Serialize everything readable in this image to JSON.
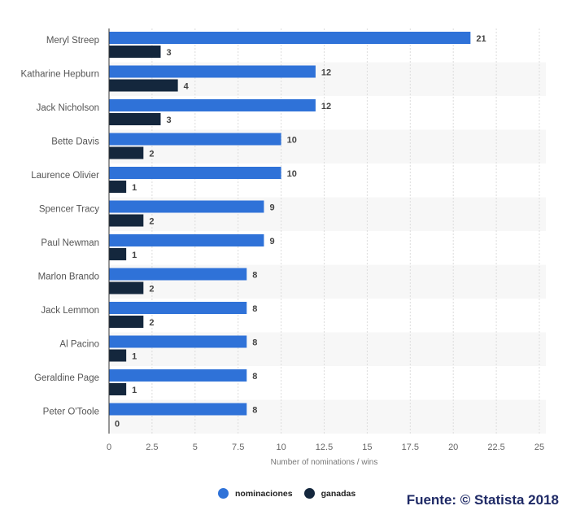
{
  "chart_data": {
    "type": "bar",
    "orientation": "horizontal",
    "categories": [
      "Meryl Streep",
      "Katharine Hepburn",
      "Jack Nicholson",
      "Bette Davis",
      "Laurence Olivier",
      "Spencer Tracy",
      "Paul Newman",
      "Marlon Brando",
      "Jack Lemmon",
      "Al Pacino",
      "Geraldine Page",
      "Peter O'Toole"
    ],
    "series": [
      {
        "name": "nominaciones",
        "color": "#2f72d8",
        "values": [
          21,
          12,
          12,
          10,
          10,
          9,
          9,
          8,
          8,
          8,
          8,
          8
        ]
      },
      {
        "name": "ganadas",
        "color": "#14273d",
        "values": [
          3,
          4,
          3,
          2,
          1,
          2,
          1,
          2,
          2,
          1,
          1,
          0
        ]
      }
    ],
    "title": "",
    "xlabel": "Number of nominations / wins",
    "ylabel": "",
    "xlim": [
      0,
      25
    ],
    "xticks": [
      0,
      2.5,
      5,
      7.5,
      10,
      12.5,
      15,
      17.5,
      20,
      22.5,
      25
    ],
    "xtick_labels": [
      "0",
      "2.5",
      "5",
      "7.5",
      "10",
      "12.5",
      "15",
      "17.5",
      "20",
      "22.5",
      "25"
    ],
    "grid": true,
    "legend_position": "bottom"
  },
  "source": "Fuente: © Statista 2018"
}
